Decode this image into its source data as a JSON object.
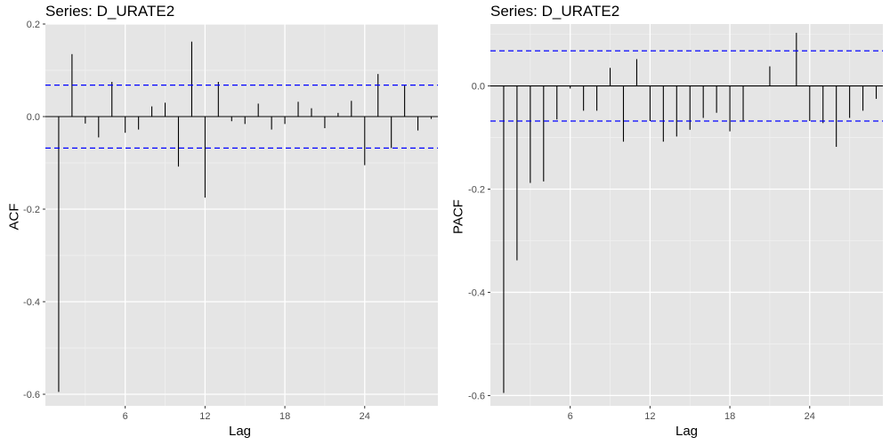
{
  "colors": {
    "panel_bg": "#e5e5e5",
    "grid_major": "#ffffff",
    "grid_minor": "#f0f0f0",
    "bars": "#000000",
    "ci_lines": "#0000ff",
    "tick_text": "#4d4d4d"
  },
  "chart_data": [
    {
      "type": "bar",
      "title": "Series: D_URATE2",
      "xlabel": "Lag",
      "ylabel": "ACF",
      "xlim": [
        0,
        29.5
      ],
      "ylim": [
        -0.625,
        0.2
      ],
      "x_ticks": [
        6,
        12,
        18,
        24
      ],
      "x_tick_labels": [
        "6",
        "12",
        "18",
        "24"
      ],
      "y_ticks": [
        -0.6,
        -0.4,
        -0.2,
        0.0,
        0.2
      ],
      "y_tick_labels": [
        "-0.6",
        "-0.4",
        "-0.2",
        "0.0",
        "0.2"
      ],
      "ci": 0.068,
      "grid": true,
      "lags": [
        1,
        2,
        3,
        4,
        5,
        6,
        7,
        8,
        9,
        10,
        11,
        12,
        13,
        14,
        15,
        16,
        17,
        18,
        19,
        20,
        21,
        22,
        23,
        24,
        25,
        26,
        27,
        28,
        29
      ],
      "values": [
        -0.595,
        0.135,
        -0.015,
        -0.045,
        0.075,
        -0.035,
        -0.028,
        0.022,
        0.03,
        -0.108,
        0.162,
        -0.175,
        0.075,
        -0.01,
        -0.016,
        0.028,
        -0.028,
        -0.016,
        0.032,
        0.018,
        -0.025,
        0.008,
        0.034,
        -0.105,
        0.092,
        -0.068,
        0.068,
        -0.03,
        -0.005
      ]
    },
    {
      "type": "bar",
      "title": "Series: D_URATE2",
      "xlabel": "Lag",
      "ylabel": "PACF",
      "xlim": [
        0,
        29.5
      ],
      "ylim": [
        -0.62,
        0.12
      ],
      "x_ticks": [
        6,
        12,
        18,
        24
      ],
      "x_tick_labels": [
        "6",
        "12",
        "18",
        "24"
      ],
      "y_ticks": [
        -0.6,
        -0.4,
        -0.2,
        0.0
      ],
      "y_tick_labels": [
        "-0.6",
        "-0.4",
        "-0.2",
        "0.0"
      ],
      "ci": 0.068,
      "grid": true,
      "lags": [
        1,
        2,
        3,
        4,
        5,
        6,
        7,
        8,
        9,
        10,
        11,
        12,
        13,
        14,
        15,
        16,
        17,
        18,
        19,
        20,
        21,
        22,
        23,
        24,
        25,
        26,
        27,
        28,
        29
      ],
      "values": [
        -0.595,
        -0.338,
        -0.188,
        -0.185,
        -0.065,
        -0.005,
        -0.048,
        -0.048,
        0.035,
        -0.108,
        0.052,
        -0.068,
        -0.108,
        -0.098,
        -0.085,
        -0.062,
        -0.052,
        -0.088,
        -0.068,
        0.0,
        0.038,
        0.0,
        0.103,
        -0.068,
        -0.072,
        -0.118,
        -0.062,
        -0.048,
        -0.025
      ]
    }
  ]
}
